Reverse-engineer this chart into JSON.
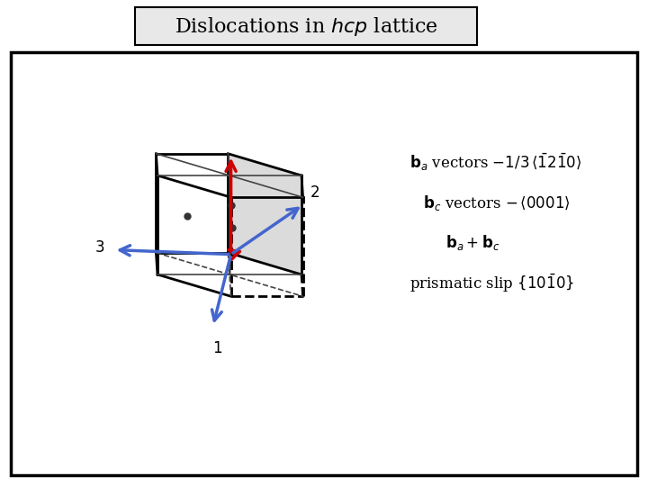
{
  "title": "Dislocations in $\\mathit{hcp}$ lattice",
  "bg_color": "#ffffff",
  "box_color": "#cccccc",
  "line_color": "#000000",
  "red_color": "#cc0000",
  "blue_color": "#4466cc",
  "gray_fill": "#cccccc",
  "label1": "$\\mathbf{b}_a$ vectors $-1/3\\,\\langle\\bar{1}2\\bar{1}0\\rangle$",
  "label2": "$\\mathbf{b}_c$ vectors $-\\,\\langle0001\\rangle$",
  "label3": "$\\mathbf{b}_a + \\mathbf{b}_c$",
  "label4": "prismatic slip $\\{10\\bar{1}0\\}$"
}
